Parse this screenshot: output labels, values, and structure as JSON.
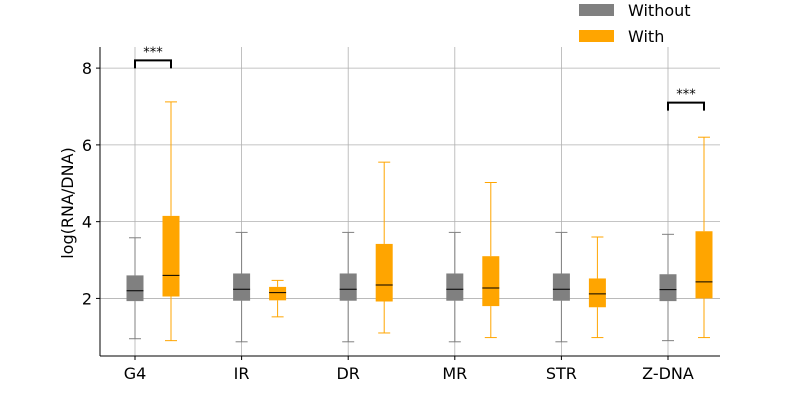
{
  "chart_data": {
    "type": "box",
    "ylabel": "log(RNA/DNA)",
    "xlabel": "",
    "ylim": [
      0.5,
      8.55
    ],
    "yticks": [
      2,
      4,
      6,
      8
    ],
    "grid": true,
    "legend_position": "top-right",
    "categories": [
      "G4",
      "IR",
      "DR",
      "MR",
      "STR",
      "Z-DNA"
    ],
    "series": [
      {
        "name": "Without",
        "color": "#808080",
        "boxes": [
          {
            "whislo": 0.95,
            "q1": 1.93,
            "med": 2.2,
            "q3": 2.6,
            "whishi": 3.58
          },
          {
            "whislo": 0.87,
            "q1": 1.94,
            "med": 2.24,
            "q3": 2.65,
            "whishi": 3.72
          },
          {
            "whislo": 0.87,
            "q1": 1.94,
            "med": 2.24,
            "q3": 2.65,
            "whishi": 3.72
          },
          {
            "whislo": 0.87,
            "q1": 1.94,
            "med": 2.24,
            "q3": 2.65,
            "whishi": 3.72
          },
          {
            "whislo": 0.87,
            "q1": 1.94,
            "med": 2.24,
            "q3": 2.65,
            "whishi": 3.72
          },
          {
            "whislo": 0.9,
            "q1": 1.93,
            "med": 2.23,
            "q3": 2.63,
            "whishi": 3.67
          }
        ]
      },
      {
        "name": "With",
        "color": "#FFA500",
        "boxes": [
          {
            "whislo": 0.9,
            "q1": 2.05,
            "med": 2.6,
            "q3": 4.15,
            "whishi": 7.12
          },
          {
            "whislo": 1.52,
            "q1": 1.95,
            "med": 2.15,
            "q3": 2.3,
            "whishi": 2.47
          },
          {
            "whislo": 1.1,
            "q1": 1.92,
            "med": 2.35,
            "q3": 3.42,
            "whishi": 5.55
          },
          {
            "whislo": 0.98,
            "q1": 1.8,
            "med": 2.27,
            "q3": 3.1,
            "whishi": 5.02
          },
          {
            "whislo": 0.98,
            "q1": 1.77,
            "med": 2.12,
            "q3": 2.52,
            "whishi": 3.6
          },
          {
            "whislo": 0.98,
            "q1": 2.0,
            "med": 2.43,
            "q3": 3.75,
            "whishi": 6.2
          }
        ]
      }
    ],
    "annotations": [
      {
        "category": "G4",
        "y": 8.2,
        "text": "***"
      },
      {
        "category": "Z-DNA",
        "y": 7.1,
        "text": "***"
      }
    ]
  }
}
